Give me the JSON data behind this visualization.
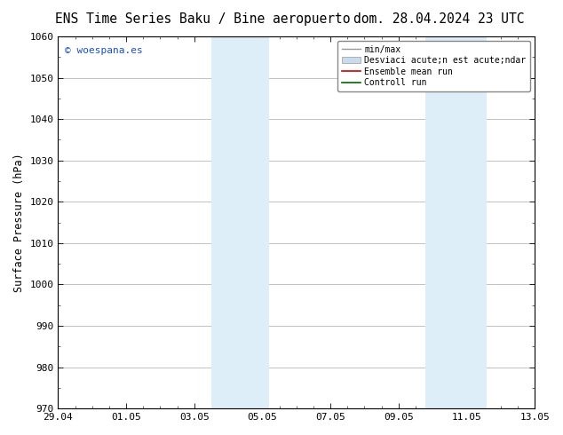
{
  "title_left": "ENS Time Series Baku / Bine aeropuerto",
  "title_right": "dom. 28.04.2024 23 UTC",
  "ylabel": "Surface Pressure (hPa)",
  "ylim": [
    970,
    1060
  ],
  "yticks": [
    970,
    980,
    990,
    1000,
    1010,
    1020,
    1030,
    1040,
    1050,
    1060
  ],
  "xlim_start": 0,
  "xlim_end": 14,
  "xtick_positions": [
    0,
    2,
    4,
    6,
    8,
    10,
    12,
    14
  ],
  "xtick_labels": [
    "29.04",
    "01.05",
    "03.05",
    "05.05",
    "07.05",
    "09.05",
    "11.05",
    "13.05"
  ],
  "watermark_text": "© woespana.es",
  "watermark_color": "#1a4fc4",
  "shaded_bands": [
    {
      "x_start": 4.5,
      "x_end": 6.2
    },
    {
      "x_start": 10.8,
      "x_end": 12.6
    }
  ],
  "shade_color": "#ddeef8",
  "shade_alpha": 1.0,
  "background_color": "#ffffff",
  "plot_bg_color": "#ffffff",
  "grid_color": "#aaaaaa",
  "legend_entries": [
    {
      "label": "min/max",
      "color": "#999999",
      "lw": 1.0,
      "style": "solid",
      "type": "line_with_caps"
    },
    {
      "label": "Desviaci acute;n est acute;ndar",
      "color": "#c8dced",
      "lw": 8,
      "style": "solid",
      "type": "band"
    },
    {
      "label": "Ensemble mean run",
      "color": "#cc0000",
      "lw": 1.2,
      "style": "solid",
      "type": "line"
    },
    {
      "label": "Controll run",
      "color": "#006600",
      "lw": 1.2,
      "style": "solid",
      "type": "line"
    }
  ],
  "title_fontsize": 10.5,
  "axis_fontsize": 8.5,
  "tick_fontsize": 8,
  "legend_fontsize": 7,
  "watermark_fontsize": 8
}
